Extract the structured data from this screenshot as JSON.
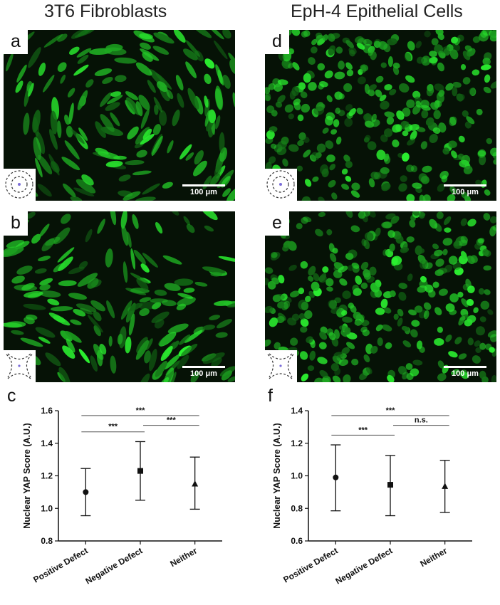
{
  "titles": {
    "left": "3T6 Fibroblasts",
    "right": "EpH-4 Epithelial Cells"
  },
  "panels": [
    {
      "label": "a",
      "defect": "positive",
      "scalebar": "100 μm"
    },
    {
      "label": "b",
      "defect": "negative",
      "scalebar": "100 μm"
    },
    {
      "label": "d",
      "defect": "positive",
      "scalebar": "100 μm"
    },
    {
      "label": "e",
      "defect": "negative",
      "scalebar": "100 μm"
    }
  ],
  "colors": {
    "fluorescence": "#3ec43a",
    "background": "#061206"
  },
  "chart_data": [
    {
      "panel": "c",
      "type": "scatter",
      "ylabel": "Nuclear YAP Score (A.U.)",
      "ylim": [
        0.8,
        1.6
      ],
      "yticks": [
        "0.8",
        "1.0",
        "1.2",
        "1.4",
        "1.6"
      ],
      "categories": [
        "Positive Defect",
        "Negative Defect",
        "Neither"
      ],
      "markers": [
        "circle",
        "square",
        "triangle"
      ],
      "values": [
        1.1,
        1.23,
        1.15
      ],
      "error_low": [
        0.955,
        1.05,
        0.995
      ],
      "error_high": [
        1.245,
        1.41,
        1.315
      ],
      "comparisons": [
        {
          "from": 0,
          "to": 1,
          "label": "***",
          "y": 1.47
        },
        {
          "from": 1,
          "to": 2,
          "label": "***",
          "y": 1.51
        },
        {
          "from": 0,
          "to": 2,
          "label": "***",
          "y": 1.57
        }
      ]
    },
    {
      "panel": "f",
      "type": "scatter",
      "ylabel": "Nuclear YAP Score (A.U.)",
      "ylim": [
        0.6,
        1.4
      ],
      "yticks": [
        "0.6",
        "0.8",
        "1.0",
        "1.2",
        "1.4"
      ],
      "categories": [
        "Positive Defect",
        "Negative Defect",
        "Neither"
      ],
      "markers": [
        "circle",
        "square",
        "triangle"
      ],
      "values": [
        0.99,
        0.945,
        0.935
      ],
      "error_low": [
        0.785,
        0.755,
        0.775
      ],
      "error_high": [
        1.19,
        1.125,
        1.095
      ],
      "comparisons": [
        {
          "from": 0,
          "to": 1,
          "label": "***",
          "y": 1.25
        },
        {
          "from": 1,
          "to": 2,
          "label": "n.s.",
          "y": 1.31
        },
        {
          "from": 0,
          "to": 2,
          "label": "***",
          "y": 1.37
        }
      ]
    }
  ]
}
